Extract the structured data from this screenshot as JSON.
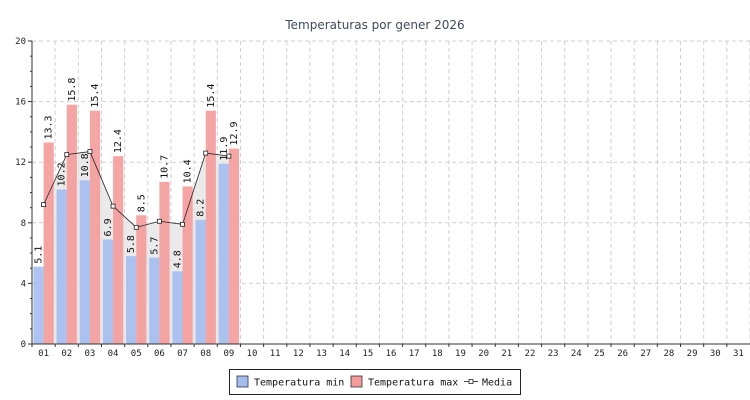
{
  "chart_data": {
    "type": "bar",
    "title": "Temperaturas por gener 2026",
    "categories": [
      "01",
      "02",
      "03",
      "04",
      "05",
      "06",
      "07",
      "08",
      "09",
      "10",
      "11",
      "12",
      "13",
      "14",
      "15",
      "16",
      "17",
      "18",
      "19",
      "20",
      "21",
      "22",
      "23",
      "24",
      "25",
      "26",
      "27",
      "28",
      "29",
      "30",
      "31"
    ],
    "series": [
      {
        "name": "Temperatura min",
        "type": "bar",
        "color": "#a4bdf0",
        "values": [
          5.1,
          10.2,
          10.8,
          6.9,
          5.8,
          5.7,
          4.8,
          8.2,
          11.9,
          null,
          null,
          null,
          null,
          null,
          null,
          null,
          null,
          null,
          null,
          null,
          null,
          null,
          null,
          null,
          null,
          null,
          null,
          null,
          null,
          null,
          null
        ]
      },
      {
        "name": "Temperatura max",
        "type": "bar",
        "color": "#f59b9b",
        "values": [
          13.3,
          15.8,
          15.4,
          12.4,
          8.5,
          10.7,
          10.4,
          15.4,
          12.9,
          null,
          null,
          null,
          null,
          null,
          null,
          null,
          null,
          null,
          null,
          null,
          null,
          null,
          null,
          null,
          null,
          null,
          null,
          null,
          null,
          null,
          null
        ]
      },
      {
        "name": "Media",
        "type": "line",
        "color": "#222222",
        "values": [
          9.2,
          12.5,
          12.7,
          9.1,
          7.7,
          8.1,
          7.9,
          12.6,
          12.4,
          null,
          null,
          null,
          null,
          null,
          null,
          null,
          null,
          null,
          null,
          null,
          null,
          null,
          null,
          null,
          null,
          null,
          null,
          null,
          null,
          null,
          null
        ]
      }
    ],
    "ylim": [
      0,
      20
    ],
    "yticks": [
      0,
      4,
      8,
      12,
      16,
      20
    ],
    "grid": true,
    "legend_position": "bottom-center",
    "media_fill_color": "#e6e6e6"
  }
}
